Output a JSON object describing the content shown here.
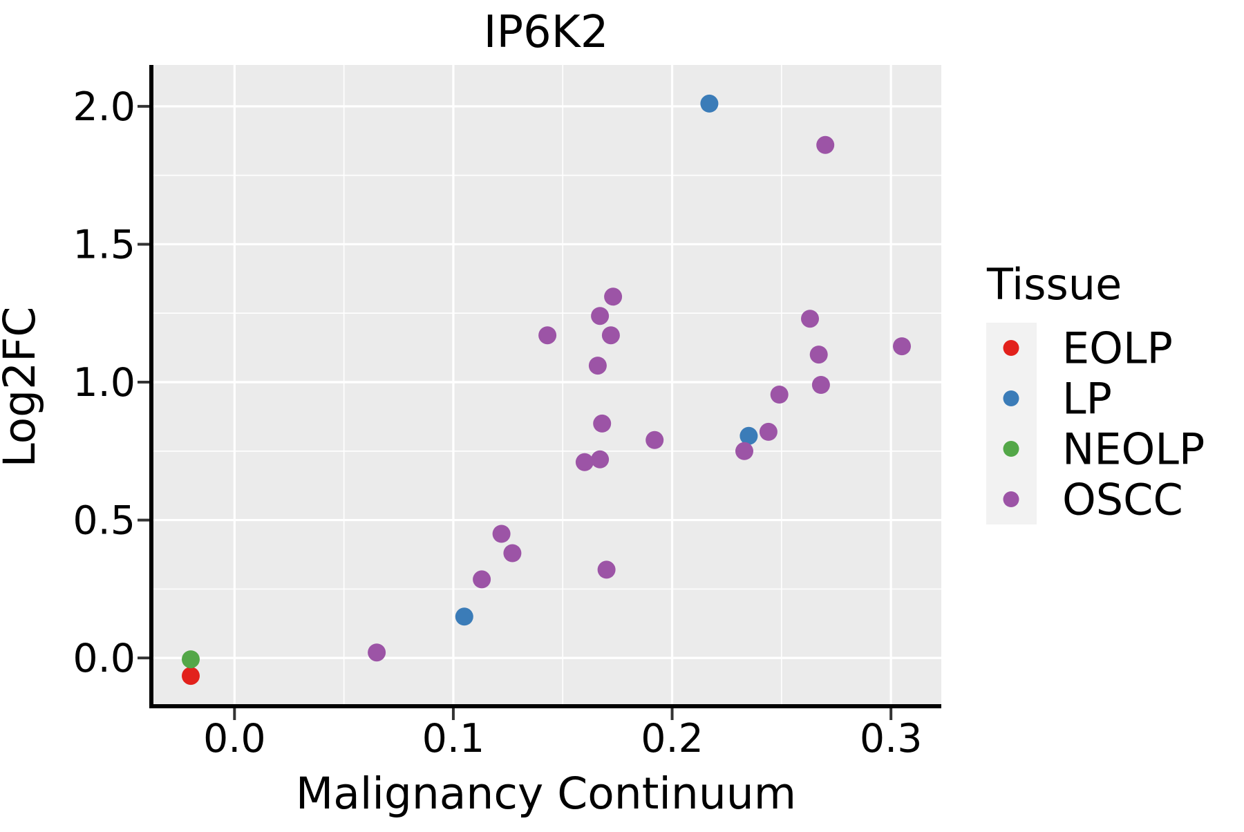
{
  "figure": {
    "title": "IP6K2",
    "x_axis": {
      "label": "Malignancy Continuum",
      "tick_labels": [
        "0.0",
        "0.1",
        "0.2",
        "0.3"
      ]
    },
    "y_axis": {
      "label": "Log2FC",
      "tick_labels": [
        "0.0",
        "0.5",
        "1.0",
        "1.5",
        "2.0"
      ]
    },
    "legend": {
      "title": "Tissue",
      "entries": [
        {
          "label": "EOLP",
          "color": "#e2211c"
        },
        {
          "label": "LP",
          "color": "#3b7cb8"
        },
        {
          "label": "NEOLP",
          "color": "#53a748"
        },
        {
          "label": "OSCC",
          "color": "#9c54a6"
        }
      ]
    }
  },
  "colors": {
    "figure_background": "#ffffff",
    "panel_background": "#ebebeb",
    "grid": "#ffffff",
    "spine": "#000000",
    "tick": "#333333",
    "text": "#000000",
    "legend_key_background": "#f2f2f2",
    "eolp": "#e2211c",
    "lp": "#3b7cb8",
    "neolp": "#53a748",
    "oscc": "#9c54a6"
  },
  "chart_data": {
    "type": "scatter",
    "title": "IP6K2",
    "xlabel": "Malignancy Continuum",
    "ylabel": "Log2FC",
    "xlim": [
      -0.038,
      0.323
    ],
    "ylim": [
      -0.175,
      2.15
    ],
    "grid": true,
    "legend_title": "Tissue",
    "legend_position": "right",
    "x_ticks": {
      "major": [
        0.0,
        0.1,
        0.2,
        0.3
      ],
      "labels": [
        "0.0",
        "0.1",
        "0.2",
        "0.3"
      ],
      "minor": [
        0.05,
        0.15,
        0.25
      ]
    },
    "y_ticks": {
      "major": [
        0.0,
        0.5,
        1.0,
        1.5,
        2.0
      ],
      "labels": [
        "0.0",
        "0.5",
        "1.0",
        "1.5",
        "2.0"
      ],
      "minor": [
        0.25,
        0.75,
        1.25,
        1.75
      ]
    },
    "series": [
      {
        "name": "EOLP",
        "color": "#e2211c",
        "points": [
          [
            -0.02,
            -0.065
          ]
        ]
      },
      {
        "name": "LP",
        "color": "#3b7cb8",
        "points": [
          [
            0.105,
            0.15
          ],
          [
            0.217,
            2.01
          ],
          [
            0.235,
            0.805
          ]
        ]
      },
      {
        "name": "NEOLP",
        "color": "#53a748",
        "points": [
          [
            -0.02,
            -0.005
          ]
        ]
      },
      {
        "name": "OSCC",
        "color": "#9c54a6",
        "points": [
          [
            0.065,
            0.02
          ],
          [
            0.113,
            0.285
          ],
          [
            0.122,
            0.45
          ],
          [
            0.127,
            0.38
          ],
          [
            0.143,
            1.17
          ],
          [
            0.16,
            0.71
          ],
          [
            0.167,
            0.72
          ],
          [
            0.166,
            1.06
          ],
          [
            0.167,
            1.24
          ],
          [
            0.17,
            0.32
          ],
          [
            0.168,
            0.85
          ],
          [
            0.173,
            1.31
          ],
          [
            0.172,
            1.17
          ],
          [
            0.192,
            0.79
          ],
          [
            0.233,
            0.75
          ],
          [
            0.244,
            0.82
          ],
          [
            0.249,
            0.955
          ],
          [
            0.263,
            1.23
          ],
          [
            0.267,
            1.1
          ],
          [
            0.268,
            0.99
          ],
          [
            0.27,
            1.86
          ],
          [
            0.305,
            1.13
          ]
        ]
      }
    ]
  }
}
